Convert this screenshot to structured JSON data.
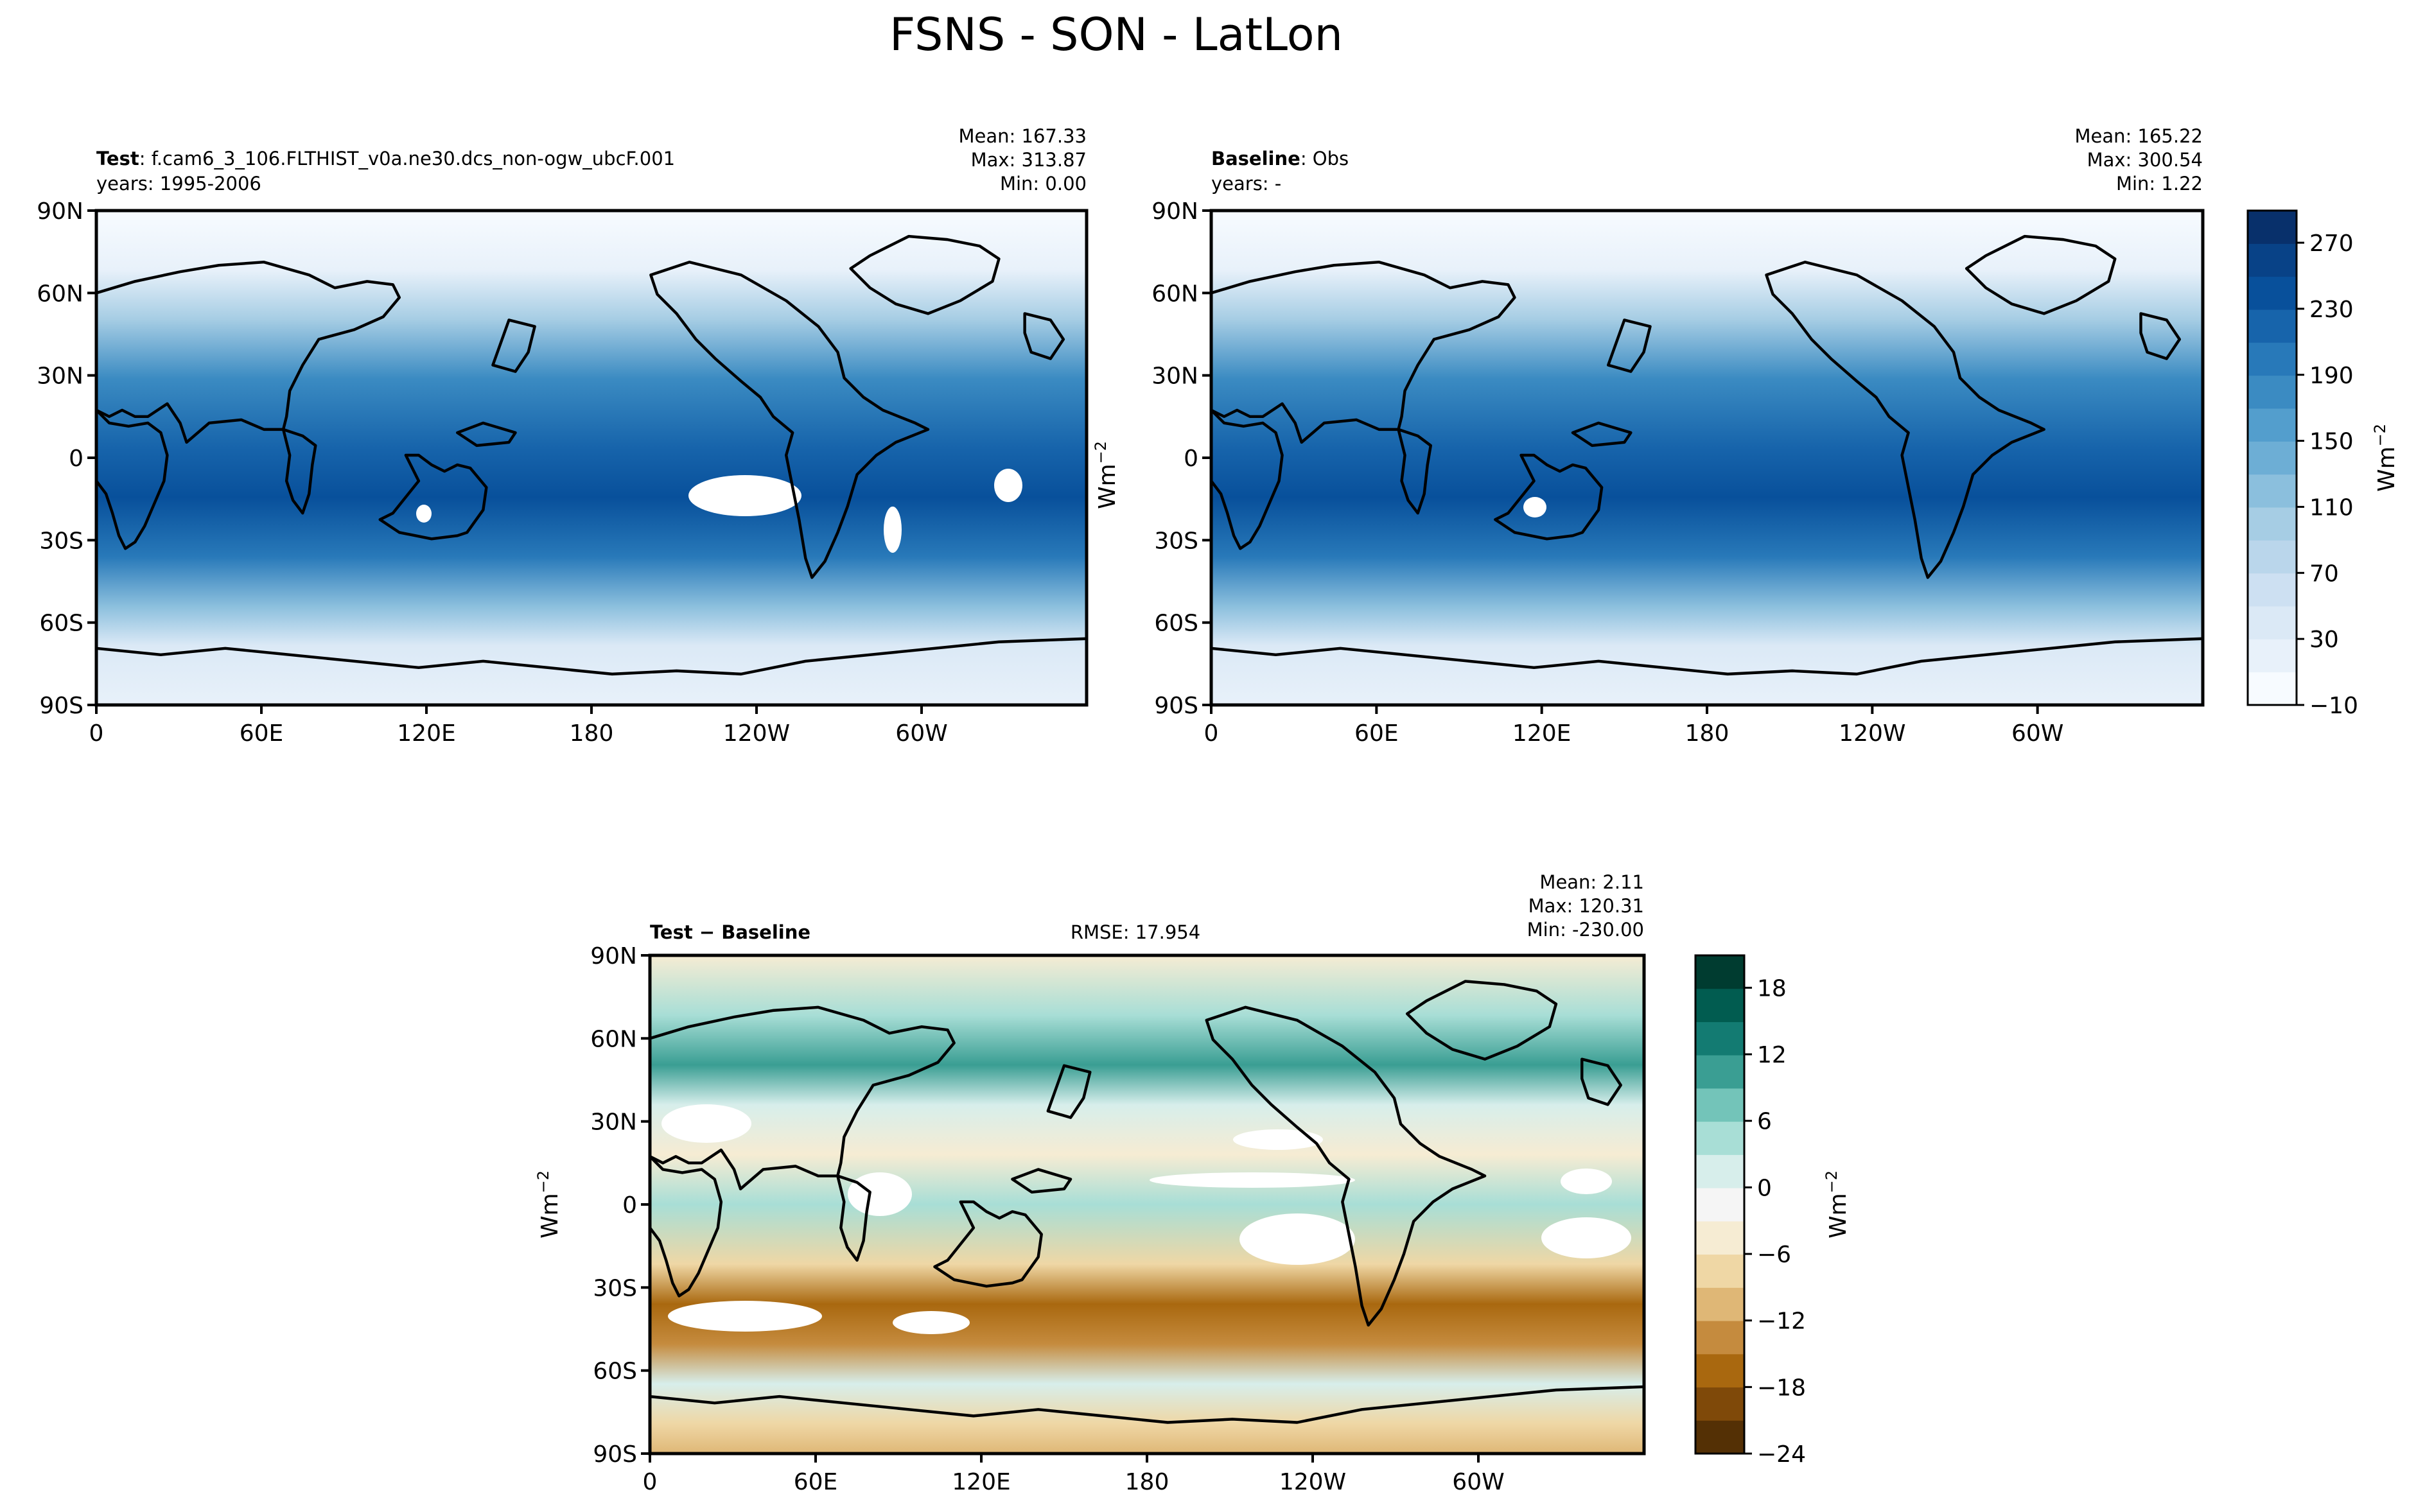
{
  "figure": {
    "title": "FSNS - SON - LatLon"
  },
  "colors": {
    "blues": [
      "#f7fbff",
      "#e8f1fa",
      "#dbe9f6",
      "#cde0f2",
      "#bad6eb",
      "#a6cde4",
      "#8bbfdd",
      "#6daed5",
      "#539ecd",
      "#3b8bc2",
      "#2879b9",
      "#1764ab",
      "#08509b",
      "#084287",
      "#08306b"
    ],
    "brbg": [
      "#543005",
      "#7f4909",
      "#a9680f",
      "#c58b3e",
      "#dfb776",
      "#efd7a5",
      "#f6ecd3",
      "#f5f5f5",
      "#d7eeeb",
      "#a8ded6",
      "#73c4b9",
      "#3a9e93",
      "#137b72",
      "#015c50",
      "#003c30"
    ],
    "coast": "#000000"
  },
  "chart_data": [
    {
      "type": "heatmap",
      "panel": "test",
      "label_bold": "Test",
      "label_text": ": f.cam6_3_106.FLTHIST_v0a.ne30.dcs_non-ogw_ubcF.001",
      "years": "years: 1995-2006",
      "stats": {
        "mean": "Mean: 167.33",
        "max": "Max: 313.87",
        "min": "Min:  0.00"
      },
      "x_ticks": [
        "0",
        "60E",
        "120E",
        "180",
        "120W",
        "60W"
      ],
      "y_ticks": [
        "90N",
        "60N",
        "30N",
        "0",
        "30S",
        "60S",
        "90S"
      ],
      "xlim": [
        0,
        360
      ],
      "ylim": [
        -90,
        90
      ],
      "ylabel": "Wm",
      "ylabel_sup": "−2"
    },
    {
      "type": "heatmap",
      "panel": "baseline",
      "label_bold": "Baseline",
      "label_text": ": Obs",
      "years": "years: -",
      "stats": {
        "mean": "Mean: 165.22",
        "max": "Max: 300.54",
        "min": "Min:  1.22"
      },
      "x_ticks": [
        "0",
        "60E",
        "120E",
        "180",
        "120W",
        "60W"
      ],
      "y_ticks": [
        "90N",
        "60N",
        "30N",
        "0",
        "30S",
        "60S",
        "90S"
      ],
      "xlim": [
        0,
        360
      ],
      "ylim": [
        -90,
        90
      ],
      "colorbar": {
        "ticks": [
          "270",
          "230",
          "190",
          "150",
          "110",
          "70",
          "30",
          "−10"
        ],
        "range": [
          -10,
          290
        ],
        "label": "Wm",
        "label_sup": "−2"
      }
    },
    {
      "type": "heatmap",
      "panel": "difference",
      "label_bold": "Test − Baseline",
      "rmse": "RMSE: 17.954",
      "stats": {
        "mean": "Mean:  2.11",
        "max": "Max: 120.31",
        "min": "Min: -230.00"
      },
      "x_ticks": [
        "0",
        "60E",
        "120E",
        "180",
        "120W",
        "60W"
      ],
      "y_ticks": [
        "90N",
        "60N",
        "30N",
        "0",
        "30S",
        "60S",
        "90S"
      ],
      "xlim": [
        0,
        360
      ],
      "ylim": [
        -90,
        90
      ],
      "ylabel": "Wm",
      "ylabel_sup": "−2",
      "colorbar": {
        "ticks": [
          "18",
          "12",
          "6",
          "0",
          "−6",
          "−12",
          "−18",
          "−24"
        ],
        "range": [
          -24,
          21
        ],
        "label": "Wm",
        "label_sup": "−2"
      }
    }
  ]
}
